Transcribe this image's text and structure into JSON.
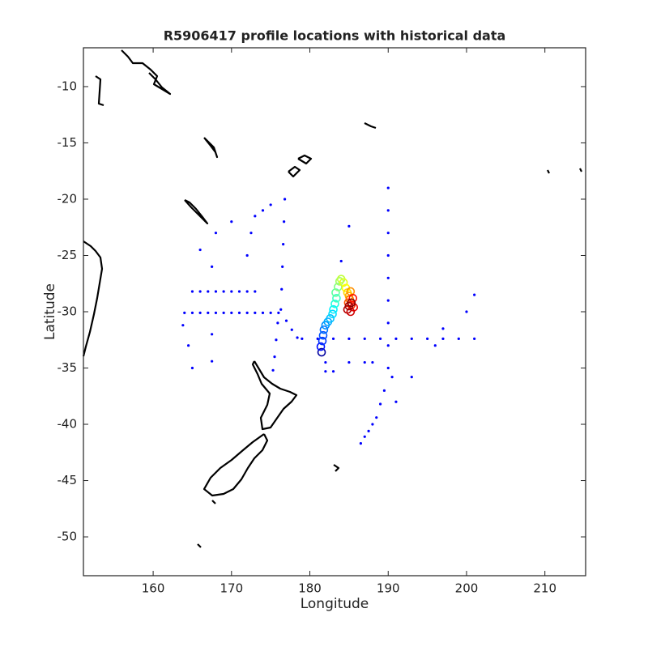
{
  "chart_data": {
    "type": "scatter",
    "title": "R5906417 profile locations with historical data",
    "xlabel": "Longitude",
    "ylabel": "Latitude",
    "xlim": [
      151.1,
      215.2
    ],
    "ylim": [
      -53.45,
      -6.55
    ],
    "xticks": [
      160,
      170,
      180,
      190,
      200,
      210
    ],
    "yticks": [
      -10,
      -15,
      -20,
      -25,
      -30,
      -35,
      -40,
      -45,
      -50
    ],
    "series": [
      {
        "color": "#0000ff",
        "marker": "dot",
        "x": [
          164,
          165,
          166,
          167,
          168,
          169,
          170,
          171,
          172,
          173,
          174,
          175,
          176,
          179,
          181,
          183,
          185,
          187,
          189,
          191,
          193,
          195,
          197,
          199,
          201,
          190,
          190,
          190,
          190,
          190,
          190,
          190,
          190,
          190,
          176.8,
          176.7,
          176.6,
          176.5,
          176.4,
          176.3,
          177,
          177.7,
          178.4,
          175.9,
          175.7,
          175.5,
          175.3,
          189.5,
          189,
          188.5,
          188,
          187.5,
          187,
          186.5,
          165,
          166,
          167,
          168,
          169,
          170,
          171,
          172,
          173,
          167.5,
          167.5,
          167.5,
          172,
          172.5,
          173,
          174,
          175,
          163.8,
          164.5,
          165,
          166,
          168,
          170,
          182,
          183,
          185,
          187,
          188,
          201,
          200,
          197,
          196,
          185,
          184,
          182,
          190.5,
          191,
          193
        ],
        "y": [
          -30.1,
          -30.1,
          -30.1,
          -30.1,
          -30.1,
          -30.1,
          -30.1,
          -30.1,
          -30.1,
          -30.1,
          -30.1,
          -30.1,
          -30.1,
          -32.4,
          -32.4,
          -32.4,
          -32.4,
          -32.4,
          -32.4,
          -32.4,
          -32.4,
          -32.4,
          -32.4,
          -32.4,
          -32.4,
          -19,
          -21,
          -23,
          -25,
          -27,
          -29,
          -31,
          -33,
          -35,
          -20,
          -22,
          -24,
          -26,
          -28,
          -29.8,
          -30.8,
          -31.6,
          -32.3,
          -31,
          -32.5,
          -34,
          -35.2,
          -37,
          -38.2,
          -39.4,
          -40,
          -40.6,
          -41.1,
          -41.7,
          -28.2,
          -28.2,
          -28.2,
          -28.2,
          -28.2,
          -28.2,
          -28.2,
          -28.2,
          -28.2,
          -26,
          -32,
          -34.4,
          -25,
          -23,
          -21.5,
          -21,
          -20.5,
          -31.2,
          -33,
          -35,
          -24.5,
          -23,
          -22,
          -35.3,
          -35.3,
          -34.5,
          -34.5,
          -34.5,
          -28.5,
          -30,
          -31.5,
          -33,
          -22.4,
          -25.5,
          -34.5,
          -35.8,
          -38,
          -35.8
        ]
      },
      {
        "color": "profile",
        "marker": "circle",
        "x": [
          181.5,
          181.4,
          181.6,
          181.7,
          181.8,
          182,
          182.3,
          182.6,
          182.9,
          183,
          183.2,
          183.4,
          183.3,
          183.6,
          183.8,
          184,
          184.3,
          184.6,
          184.8,
          185,
          185.2,
          185.1,
          184.9,
          185.3,
          185.5,
          185.6,
          185.2,
          184.8,
          185,
          185.3
        ],
        "y": [
          -33.6,
          -33.1,
          -32.6,
          -32.1,
          -31.6,
          -31.2,
          -30.9,
          -30.6,
          -30.2,
          -29.8,
          -29.3,
          -28.8,
          -28.3,
          -27.8,
          -27.3,
          -27.1,
          -27.4,
          -27.9,
          -28.3,
          -28.6,
          -28.2,
          -28.9,
          -29.2,
          -29.4,
          -28.8,
          -29.6,
          -30,
          -29.8,
          -29.5,
          -29.2
        ],
        "colors": [
          "#0000a0",
          "#0010ff",
          "#0030ff",
          "#0050ff",
          "#0070ff",
          "#0090ff",
          "#00a8ff",
          "#00c0ff",
          "#00d8ff",
          "#00f0ff",
          "#20ffe0",
          "#40ffc0",
          "#60ffa0",
          "#80ff80",
          "#a0ff60",
          "#c0ff40",
          "#e0ff20",
          "#ffff00",
          "#ffd800",
          "#ffb000",
          "#ff9000",
          "#ff7000",
          "#ff5000",
          "#ff3000",
          "#ff1000",
          "#e80000",
          "#d00000",
          "#b80000",
          "#a00000",
          "#880000"
        ]
      }
    ]
  }
}
